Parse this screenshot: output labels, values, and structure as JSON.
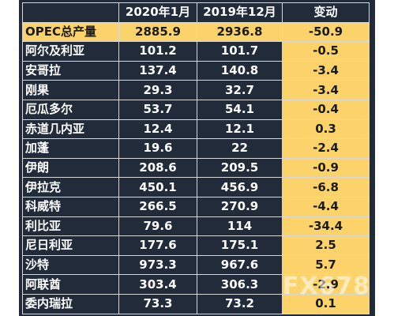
{
  "table": {
    "headers": [
      "",
      "2020年1月",
      "2019年12月",
      "变动"
    ],
    "total": {
      "name": "OPEC总产量",
      "jan2020": "2885.9",
      "dec2019": "2936.8",
      "change": "-50.9"
    },
    "rows": [
      {
        "name": "阿尔及利亚",
        "jan2020": "101.2",
        "dec2019": "101.7",
        "change": "-0.5"
      },
      {
        "name": "安哥拉",
        "jan2020": "137.4",
        "dec2019": "140.8",
        "change": "-3.4"
      },
      {
        "name": "刚果",
        "jan2020": "29.3",
        "dec2019": "32.7",
        "change": "-3.4"
      },
      {
        "name": "厄瓜多尔",
        "jan2020": "53.7",
        "dec2019": "54.1",
        "change": "-0.4"
      },
      {
        "name": "赤道几内亚",
        "jan2020": "12.4",
        "dec2019": "12.1",
        "change": "0.3"
      },
      {
        "name": "加蓬",
        "jan2020": "19.6",
        "dec2019": "22",
        "change": "-2.4"
      },
      {
        "name": "伊朗",
        "jan2020": "208.6",
        "dec2019": "209.5",
        "change": "-0.9"
      },
      {
        "name": "伊拉克",
        "jan2020": "450.1",
        "dec2019": "456.9",
        "change": "-6.8"
      },
      {
        "name": "科威特",
        "jan2020": "266.5",
        "dec2019": "270.9",
        "change": "-4.4"
      },
      {
        "name": "利比亚",
        "jan2020": "79.6",
        "dec2019": "114",
        "change": "-34.4"
      },
      {
        "name": "尼日利亚",
        "jan2020": "177.6",
        "dec2019": "175.1",
        "change": "2.5"
      },
      {
        "name": "沙特",
        "jan2020": "973.3",
        "dec2019": "967.6",
        "change": "5.7"
      },
      {
        "name": "阿联酋",
        "jan2020": "303.4",
        "dec2019": "306.3",
        "change": "-2.9"
      },
      {
        "name": "委内瑞拉",
        "jan2020": "73.3",
        "dec2019": "73.2",
        "change": "0.1"
      }
    ]
  },
  "watermark": "FX678",
  "colors": {
    "background": "#222b3a",
    "highlight": "#fcd26a",
    "text_light": "#ffffff",
    "text_dark": "#1a1a1a"
  }
}
